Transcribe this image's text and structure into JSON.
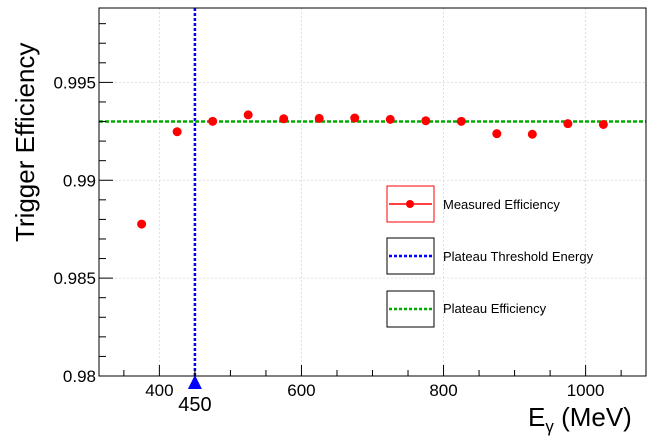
{
  "chart_data": {
    "type": "scatter",
    "title": "",
    "xlabel": "E",
    "xlabel_subscript": "γ",
    "xlabel_suffix": " (MeV)",
    "ylabel": "Trigger Efficiency",
    "xlim": [
      315,
      1085
    ],
    "ylim": [
      0.98,
      0.9988
    ],
    "xticks": [
      400,
      600,
      800,
      1000
    ],
    "yticks": [
      0.98,
      0.985,
      0.99,
      0.995
    ],
    "ytick_labels": [
      "0.98",
      "0.985",
      "0.99",
      "0.995"
    ],
    "xtick_labels": [
      "400",
      "600",
      "800",
      "1000"
    ],
    "grid": true,
    "legend_position": "right",
    "series": [
      {
        "name": "Measured Efficiency",
        "color": "#ff0000",
        "x": [
          375,
          425,
          475,
          525,
          575,
          625,
          675,
          725,
          775,
          825,
          875,
          925,
          975,
          1025
        ],
        "y": [
          0.98776,
          0.99248,
          0.99301,
          0.99334,
          0.99314,
          0.99316,
          0.99318,
          0.99311,
          0.99304,
          0.99301,
          0.99238,
          0.99235,
          0.99289,
          0.99285
        ]
      }
    ],
    "threshold_line": {
      "name": "Plateau Threshold Energy",
      "x": 450,
      "label": "450",
      "color": "#0000ff"
    },
    "plateau_line": {
      "name": "Plateau Efficiency",
      "y": 0.993,
      "color": "#00aa00"
    }
  }
}
